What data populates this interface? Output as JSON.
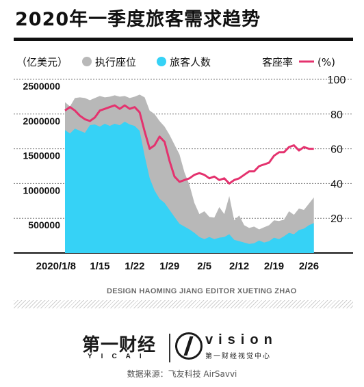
{
  "title": "2020年一季度旅客需求趋势",
  "colors": {
    "capacity": "#b8b8b8",
    "passengers": "#36d2f6",
    "load_factor": "#e4326e",
    "text": "#111111"
  },
  "legend": {
    "unit": "（亿美元）",
    "capacity_label": "执行座位",
    "passengers_label": "旅客人数",
    "load_factor_label": "客座率",
    "load_factor_unit": "(%)"
  },
  "chart_data": {
    "type": "area",
    "x_tick_labels": [
      "2020/1/8",
      "1/15",
      "1/22",
      "1/29",
      "2/5",
      "2/12",
      "2/19",
      "2/26"
    ],
    "x_tick_days": [
      0,
      7,
      14,
      21,
      28,
      35,
      42,
      49
    ],
    "x_range_days": [
      0,
      51
    ],
    "y_left": {
      "ticks": [
        "2500000",
        "2000000",
        "1500000",
        "1000000",
        "500000"
      ],
      "ylim": [
        0,
        2500000
      ]
    },
    "y_right": {
      "ticks": [
        "100",
        "80",
        "60",
        "40",
        "20"
      ],
      "ylim": [
        0,
        100
      ]
    },
    "series": [
      {
        "name": "执行座位",
        "type": "area",
        "values": [
          2170000,
          2110000,
          2230000,
          2240000,
          2230000,
          2200000,
          2230000,
          2260000,
          2240000,
          2250000,
          2270000,
          2250000,
          2260000,
          2230000,
          2250000,
          2280000,
          2240000,
          2050000,
          2000000,
          1900000,
          1820000,
          1700000,
          1560000,
          1420000,
          1160000,
          980000,
          720000,
          560000,
          600000,
          520000,
          510000,
          660000,
          560000,
          820000,
          470000,
          540000,
          400000,
          360000,
          380000,
          340000,
          370000,
          400000,
          470000,
          460000,
          480000,
          600000,
          550000,
          640000,
          620000,
          710000,
          800000
        ]
      },
      {
        "name": "旅客人数",
        "type": "area",
        "values": [
          1770000,
          1720000,
          1790000,
          1760000,
          1730000,
          1840000,
          1850000,
          1820000,
          1860000,
          1830000,
          1860000,
          1840000,
          1890000,
          1850000,
          1830000,
          1760000,
          1400000,
          1080000,
          900000,
          780000,
          720000,
          620000,
          520000,
          420000,
          380000,
          340000,
          290000,
          230000,
          200000,
          230000,
          200000,
          220000,
          230000,
          270000,
          190000,
          170000,
          150000,
          130000,
          140000,
          180000,
          150000,
          170000,
          220000,
          200000,
          240000,
          290000,
          270000,
          330000,
          350000,
          400000,
          430000
        ]
      },
      {
        "name": "客座率",
        "type": "line",
        "axis": "right",
        "values": [
          82,
          84,
          82,
          79,
          77,
          76,
          78,
          82,
          83,
          84,
          85,
          83,
          85,
          83,
          84,
          81,
          70,
          60,
          62,
          67,
          64,
          53,
          44,
          41,
          42,
          43,
          45,
          46,
          45,
          43,
          44,
          42,
          43,
          40,
          42,
          43,
          45,
          47,
          47,
          50,
          51,
          52,
          56,
          58,
          58,
          61,
          62,
          59,
          61,
          60,
          60
        ]
      }
    ],
    "grid": true
  },
  "credit": "DESIGN HAOMING JIANG  EDITOR XUETING ZHAO",
  "logos": {
    "yicai_cn": "第一财经",
    "yicai_en": "YICAI",
    "vision": "vision",
    "vision_cn": "第一财经视觉中心"
  },
  "source": "数据来源：飞友科技 AirSavvi"
}
